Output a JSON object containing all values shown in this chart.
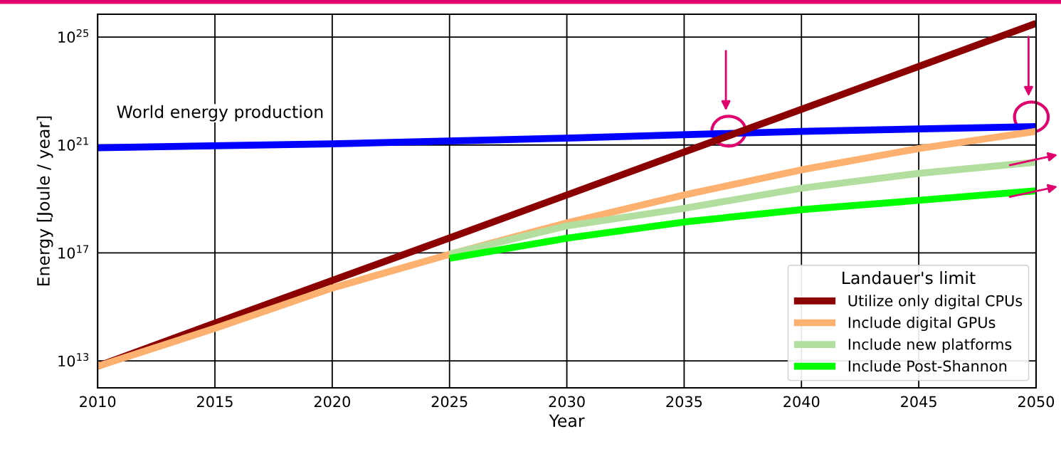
{
  "chart_data": {
    "type": "line",
    "xlabel": "Year",
    "ylabel": "Energy [Joule / year]",
    "legend_title": "Landauer's limit",
    "legend": "bottom right",
    "grid": true,
    "log": "y",
    "xlim": [
      2010,
      2050
    ],
    "xticks": [
      2010,
      2015,
      2020,
      2025,
      2030,
      2035,
      2040,
      2045,
      2050
    ],
    "ylim": [
      1000000000000.0,
      7e+25
    ],
    "yticks": [
      {
        "value": 10000000000000.0,
        "label": "10$^{13}$"
      },
      {
        "value": 1e+17,
        "label": "10$^{17}$"
      },
      {
        "value": 1e+21,
        "label": "10$^{21}$"
      },
      {
        "value": 1e+25,
        "label": "10$^{25}$"
      }
    ],
    "annotations": [
      "World energy production"
    ],
    "series": [
      {
        "color": "#0000ff",
        "x": [
          2010,
          2020,
          2030,
          2040,
          2050
        ],
        "values": [
          7.9e+20,
          1.1e+21,
          1.8e+21,
          3.2e+21,
          4.8e+21
        ]
      },
      {
        "name": "Utilize only digital CPUs",
        "color": "#8b0000",
        "x": [
          2010,
          2015,
          2020,
          2025,
          2030,
          2035,
          2040,
          2045,
          2050
        ],
        "values": [
          6300000000000.0,
          250000000000000.0,
          9500000000000000.0,
          3.6e+17,
          1.4e+19,
          5.5e+20,
          2.1e+22,
          8.1e+23,
          3.2e+25
        ]
      },
      {
        "name": "Include digital GPUs",
        "color": "#fdb171",
        "x": [
          2010,
          2015,
          2020,
          2025,
          2030,
          2035,
          2040,
          2045,
          2050
        ],
        "values": [
          6300000000000.0,
          160000000000000.0,
          5000000000000000.0,
          8.9e+16,
          1.3e+18,
          1.4e+19,
          1.2e+20,
          7.4e+20,
          3.2e+21
        ]
      },
      {
        "name": "Include new platforms",
        "color": "#b2dfa0",
        "x": [
          2025,
          2030,
          2035,
          2040,
          2045,
          2050
        ],
        "values": [
          8.9e+16,
          1e+18,
          4.5e+18,
          2.5e+19,
          8.9e+19,
          2.3e+20
        ]
      },
      {
        "name": "Include Post-Shannon",
        "color": "#00ff00",
        "x": [
          2025,
          2030,
          2035,
          2040,
          2045,
          2050
        ],
        "values": [
          6.3e+16,
          3.5e+17,
          1.4e+18,
          4e+18,
          8.9e+18,
          2e+19
        ]
      }
    ]
  }
}
